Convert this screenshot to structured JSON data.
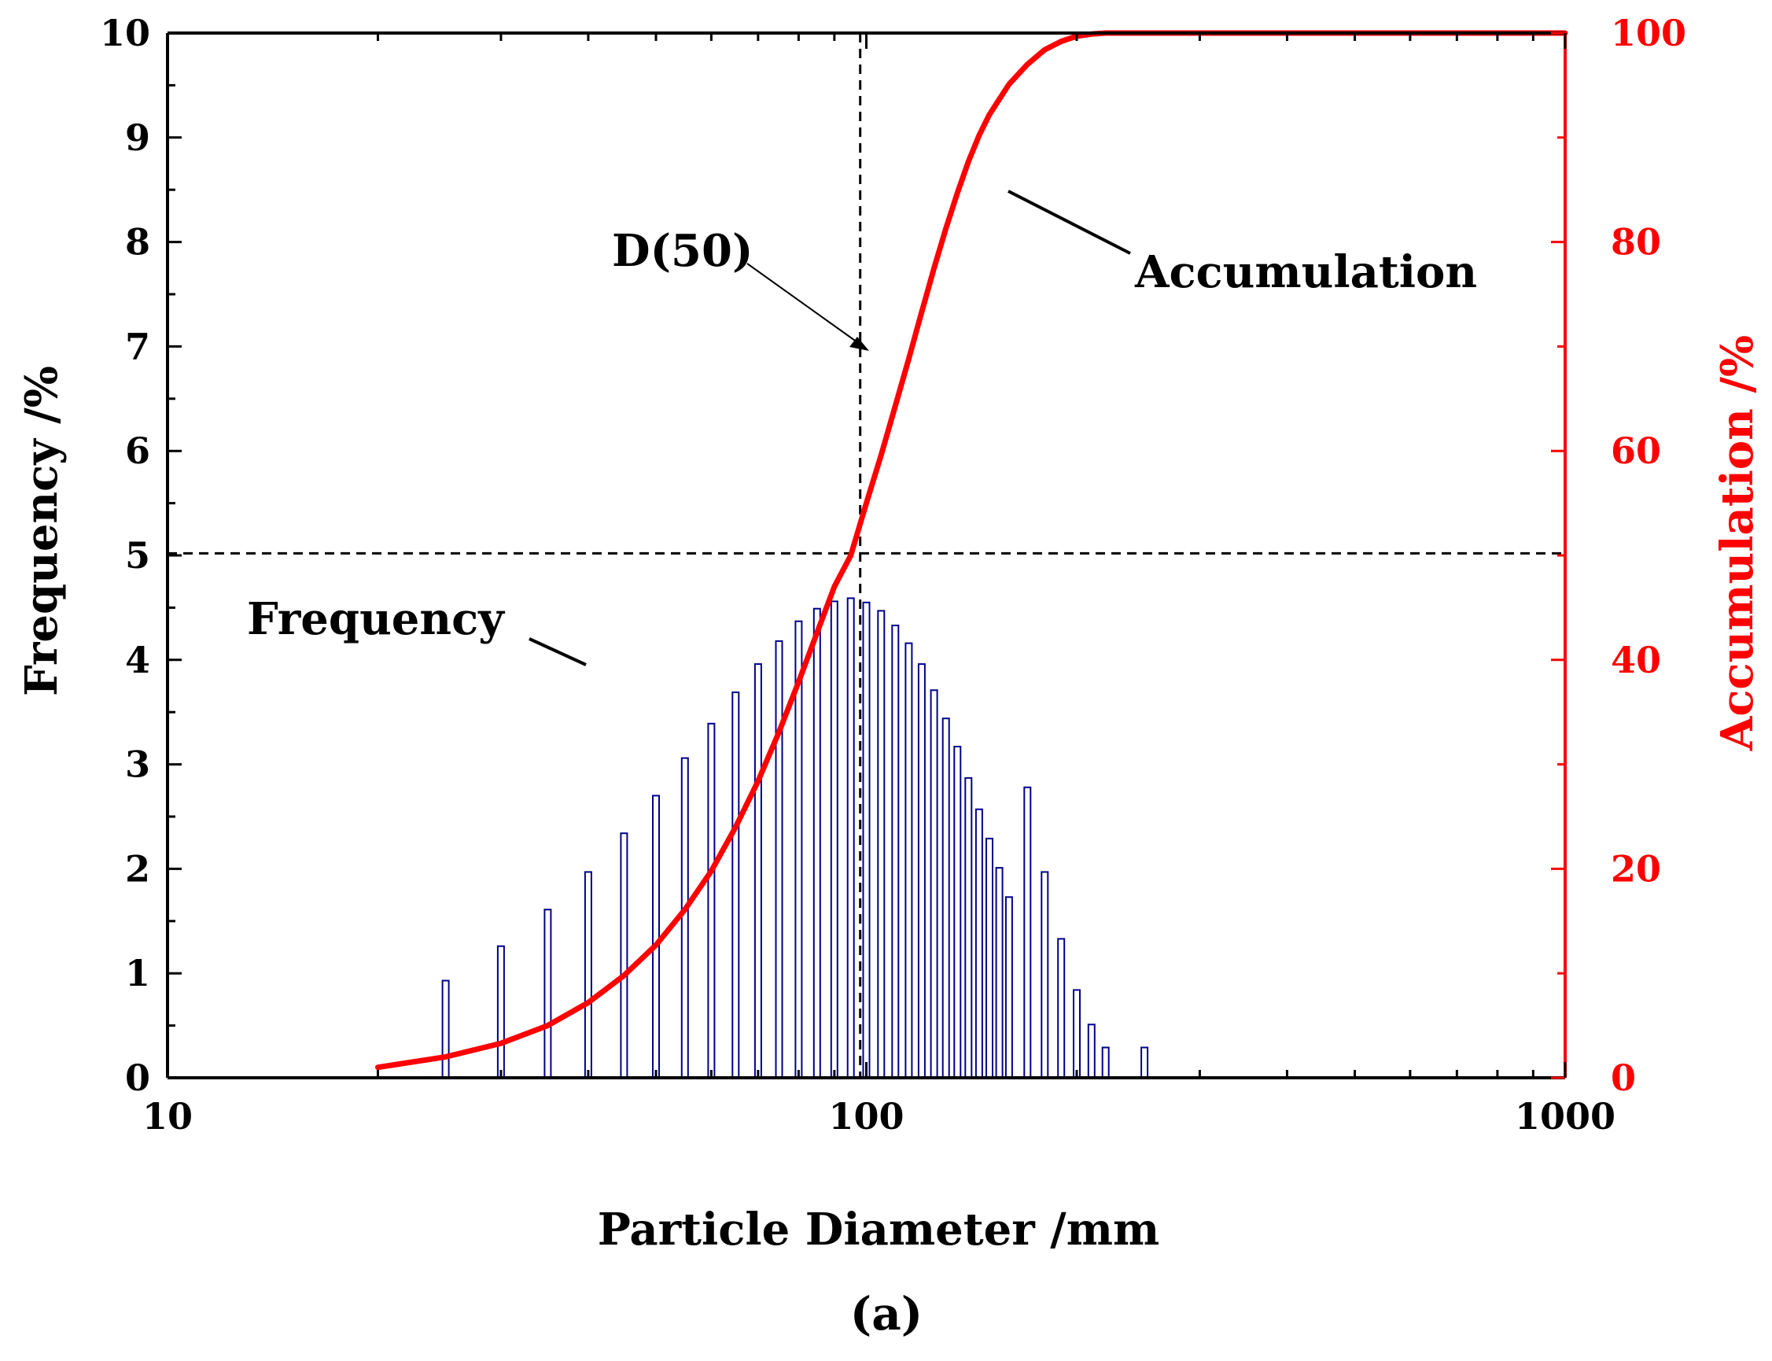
{
  "chart_data": {
    "type": "bar",
    "x_scale": "log",
    "xlim": [
      10,
      1000
    ],
    "ylim": [
      0,
      10
    ],
    "y2lim": [
      0,
      100
    ],
    "xlabel": "Particle Diameter /mm",
    "ylabel": "Frequency /%",
    "y2label": "Accumulation /%",
    "x_ticks": [
      "10",
      "100",
      "1000"
    ],
    "y_ticks": [
      "0",
      "1",
      "2",
      "3",
      "4",
      "5",
      "6",
      "7",
      "8",
      "9",
      "10"
    ],
    "y2_ticks": [
      "0",
      "20",
      "40",
      "60",
      "80",
      "100"
    ],
    "caption": "(a)",
    "colors": {
      "frequency": "#00008b",
      "accumulation": "#ff0000",
      "reference": "#000000"
    },
    "series": [
      {
        "name": "Frequency",
        "kind": "bar",
        "axis": "left",
        "x": [
          25,
          30,
          35,
          40,
          45,
          50,
          55,
          60,
          65,
          70,
          75,
          80,
          85,
          90,
          95,
          100,
          105,
          110,
          115,
          120,
          125,
          130,
          135,
          140,
          145,
          150,
          155,
          160,
          170,
          180,
          190,
          200,
          210,
          220,
          250
        ],
        "values": [
          0.93,
          1.26,
          1.61,
          1.97,
          2.34,
          2.7,
          3.06,
          3.39,
          3.69,
          3.96,
          4.18,
          4.37,
          4.49,
          4.56,
          4.59,
          4.55,
          4.47,
          4.33,
          4.16,
          3.96,
          3.71,
          3.44,
          3.17,
          2.87,
          2.57,
          2.29,
          2.01,
          1.73,
          2.78,
          1.97,
          1.33,
          0.84,
          0.51,
          0.29,
          0.29
        ]
      },
      {
        "name": "Accumulation",
        "kind": "line",
        "axis": "right",
        "x": [
          20,
          25,
          30,
          35,
          40,
          45,
          50,
          55,
          60,
          65,
          70,
          75,
          80,
          85,
          90,
          95,
          100,
          105,
          110,
          115,
          120,
          125,
          130,
          135,
          140,
          145,
          150,
          160,
          170,
          180,
          190,
          200,
          210,
          220,
          240,
          300,
          1000
        ],
        "values": [
          1.0,
          2.0,
          3.3,
          5.0,
          7.2,
          9.8,
          12.7,
          16.1,
          19.8,
          24.0,
          28.4,
          33.1,
          37.9,
          42.6,
          47.0,
          50.0,
          55.0,
          59.6,
          64.3,
          68.8,
          73.3,
          77.5,
          81.3,
          84.7,
          87.7,
          90.2,
          92.2,
          95.1,
          97.0,
          98.4,
          99.2,
          99.7,
          99.9,
          100.0,
          100.0,
          100.0,
          100.0
        ]
      }
    ],
    "reference_lines": {
      "x": 98,
      "y_frequency": 5.02,
      "y_accumulation": 50
    },
    "annotations": [
      {
        "text": "D(50)",
        "target": "intersection of reference line with accumulation axis"
      },
      {
        "text": "Accumulation",
        "target": "accumulation curve"
      },
      {
        "text": "Frequency",
        "target": "frequency bars"
      }
    ]
  }
}
